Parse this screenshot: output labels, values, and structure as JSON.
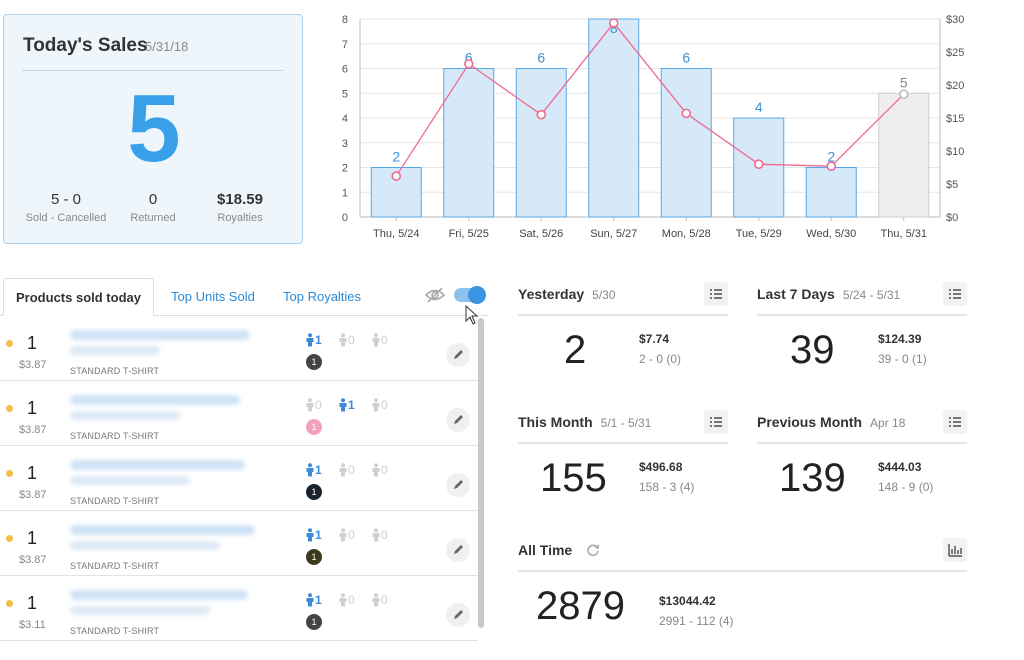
{
  "today": {
    "title": "Today's Sales",
    "date": "5/31/18",
    "count": "5",
    "sold_cancelled_value": "5 - 0",
    "sold_cancelled_label": "Sold - Cancelled",
    "returned_value": "0",
    "returned_label": "Returned",
    "royalties_value": "$18.59",
    "royalties_label": "Royalties"
  },
  "chart_data": {
    "type": "bar",
    "categories": [
      "Thu, 5/24",
      "Fri, 5/25",
      "Sat, 5/26",
      "Sun, 5/27",
      "Mon, 5/28",
      "Tue, 5/29",
      "Wed, 5/30",
      "Thu, 5/31"
    ],
    "series": [
      {
        "values": [
          2,
          6,
          6,
          8,
          6,
          4,
          2,
          5
        ],
        "color": "#d6e9f8",
        "stroke": "#5aa8e3",
        "label_color": "#3d91d4",
        "highlight_last_color": "#eeeeee"
      },
      {
        "type": "line",
        "values": [
          6.2,
          23.2,
          15.5,
          29.4,
          15.7,
          8.0,
          7.7,
          18.6
        ],
        "axis": "right",
        "color": "#f06a8e"
      }
    ],
    "ylim": [
      0,
      8
    ],
    "yticks": [
      0,
      1,
      2,
      3,
      4,
      5,
      6,
      7,
      8
    ],
    "y2lim": [
      0,
      30
    ],
    "y2ticks": [
      "$0",
      "$5",
      "$10",
      "$15",
      "$20",
      "$25",
      "$30"
    ],
    "grid": true
  },
  "tabs": {
    "products_sold_today": "Products sold today",
    "top_units_sold": "Top Units Sold",
    "top_royalties": "Top Royalties"
  },
  "products": [
    {
      "qty": "1",
      "price": "$3.87",
      "type": "STANDARD T-SHIRT",
      "fits": [
        {
          "n": "1",
          "on": true
        },
        {
          "n": "0",
          "on": false
        },
        {
          "n": "0",
          "on": false
        }
      ],
      "color_count": "1",
      "color_hex": "#444444"
    },
    {
      "qty": "1",
      "price": "$3.87",
      "type": "STANDARD T-SHIRT",
      "fits": [
        {
          "n": "0",
          "on": false
        },
        {
          "n": "1",
          "on": true
        },
        {
          "n": "0",
          "on": false
        }
      ],
      "color_count": "1",
      "color_hex": "#f4a0bd"
    },
    {
      "qty": "1",
      "price": "$3.87",
      "type": "STANDARD T-SHIRT",
      "fits": [
        {
          "n": "1",
          "on": true
        },
        {
          "n": "0",
          "on": false
        },
        {
          "n": "0",
          "on": false
        }
      ],
      "color_count": "1",
      "color_hex": "#1a2230"
    },
    {
      "qty": "1",
      "price": "$3.87",
      "type": "STANDARD T-SHIRT",
      "fits": [
        {
          "n": "1",
          "on": true
        },
        {
          "n": "0",
          "on": false
        },
        {
          "n": "0",
          "on": false
        }
      ],
      "color_count": "1",
      "color_hex": "#3d3a1e"
    },
    {
      "qty": "1",
      "price": "$3.11",
      "type": "STANDARD T-SHIRT",
      "fits": [
        {
          "n": "1",
          "on": true
        },
        {
          "n": "0",
          "on": false
        },
        {
          "n": "0",
          "on": false
        }
      ],
      "color_count": "1",
      "color_hex": "#444444"
    }
  ],
  "stats": {
    "yesterday": {
      "title": "Yesterday",
      "sub": "5/30",
      "big": "2",
      "money": "$7.74",
      "detail": "2 - 0  (0)"
    },
    "last7": {
      "title": "Last 7 Days",
      "sub": "5/24 - 5/31",
      "big": "39",
      "money": "$124.39",
      "detail": "39 - 0  (1)"
    },
    "this_month": {
      "title": "This Month",
      "sub": "5/1 - 5/31",
      "big": "155",
      "money": "$496.68",
      "detail": "158 - 3  (4)"
    },
    "prev_month": {
      "title": "Previous Month",
      "sub": "Apr 18",
      "big": "139",
      "money": "$444.03",
      "detail": "148 - 9  (0)"
    },
    "all_time": {
      "title": "All Time",
      "big": "2879",
      "money": "$13044.42",
      "detail": "2991 - 112  (4)"
    }
  },
  "icons": {
    "list": "list-icon",
    "bar_chart": "bar-chart-icon",
    "refresh": "refresh-icon",
    "edit": "pencil-icon",
    "hide": "eye-slash-icon"
  }
}
